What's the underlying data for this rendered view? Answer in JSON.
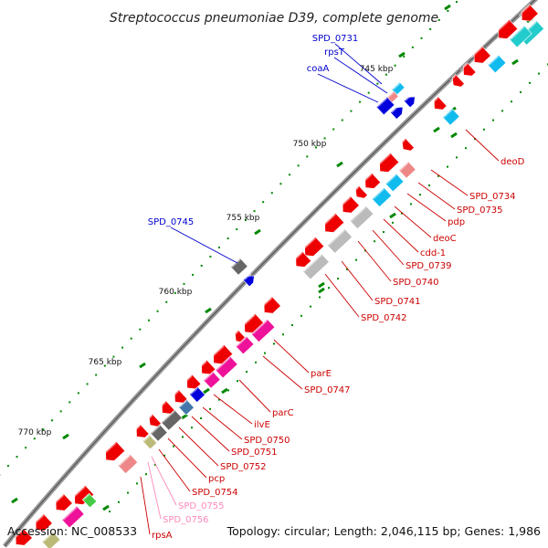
{
  "title": "Streptococcus pneumoniae D39, complete genome",
  "footer": {
    "accession": "Accession: NC_008533",
    "summary": "Topology: circular; Length: 2,046,115 bp; Genes: 1,986"
  },
  "colors": {
    "backbone": "#888888",
    "forward_label": "#0000cc",
    "reverse_label": "#cc0000",
    "pseudo_label": "#ff88bb",
    "tick": "#008800",
    "red_gene": "#ee0000",
    "magenta": "#ee1199",
    "cyan": "#11bbee",
    "teal": "#22cccc",
    "blue": "#0000dd",
    "gray": "#666666",
    "lightgray": "#bbbbbb",
    "pink": "#ee8888",
    "olive": "#bbbb77",
    "steelblue": "#4477aa",
    "green": "#44cc44"
  },
  "kbp_markers": [
    "745 kbp",
    "750 kbp",
    "755 kbp",
    "760 kbp",
    "765 kbp",
    "770 kbp"
  ],
  "genes": [
    {
      "name": "SPD_0731",
      "strand": "forward"
    },
    {
      "name": "rpsT",
      "strand": "forward"
    },
    {
      "name": "coaA",
      "strand": "forward"
    },
    {
      "name": "SPD_0745",
      "strand": "forward"
    },
    {
      "name": "deoD",
      "strand": "reverse"
    },
    {
      "name": "SPD_0734",
      "strand": "reverse"
    },
    {
      "name": "SPD_0735",
      "strand": "reverse"
    },
    {
      "name": "pdp",
      "strand": "reverse"
    },
    {
      "name": "deoC",
      "strand": "reverse"
    },
    {
      "name": "cdd-1",
      "strand": "reverse"
    },
    {
      "name": "SPD_0739",
      "strand": "reverse"
    },
    {
      "name": "SPD_0740",
      "strand": "reverse"
    },
    {
      "name": "SPD_0741",
      "strand": "reverse"
    },
    {
      "name": "SPD_0742",
      "strand": "reverse"
    },
    {
      "name": "parE",
      "strand": "reverse"
    },
    {
      "name": "SPD_0747",
      "strand": "reverse"
    },
    {
      "name": "parC",
      "strand": "reverse"
    },
    {
      "name": "ilvE",
      "strand": "reverse"
    },
    {
      "name": "SPD_0750",
      "strand": "reverse"
    },
    {
      "name": "SPD_0751",
      "strand": "reverse"
    },
    {
      "name": "SPD_0752",
      "strand": "reverse"
    },
    {
      "name": "pcp",
      "strand": "reverse"
    },
    {
      "name": "SPD_0754",
      "strand": "reverse"
    },
    {
      "name": "SPD_0755",
      "strand": "pseudo"
    },
    {
      "name": "SPD_0756",
      "strand": "pseudo"
    },
    {
      "name": "rpsA",
      "strand": "reverse"
    }
  ]
}
